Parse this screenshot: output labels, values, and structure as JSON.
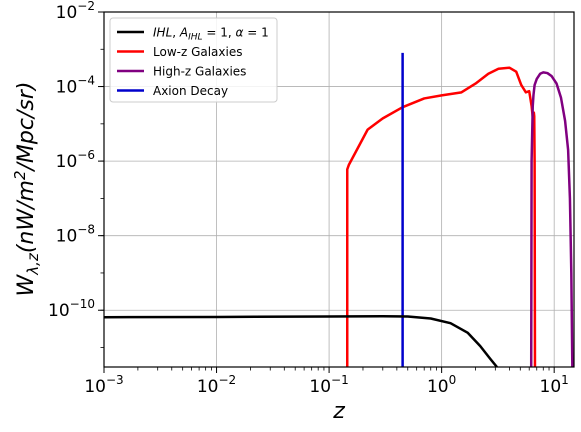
{
  "chart_data": {
    "type": "line",
    "xscale": "log",
    "yscale": "log",
    "xlim": [
      0.001,
      15
    ],
    "ylim": [
      3e-12,
      0.01
    ],
    "grid": true,
    "legend_position": "top-left",
    "xlabel": "z",
    "ylabel": "W_{λ,z}(nW/m^2/Mpc/sr)",
    "x_ticks": [
      {
        "value": 0.001,
        "base": "10",
        "exp": "−3"
      },
      {
        "value": 0.01,
        "base": "10",
        "exp": "−2"
      },
      {
        "value": 0.1,
        "base": "10",
        "exp": "−1"
      },
      {
        "value": 1,
        "base": "10",
        "exp": "0"
      },
      {
        "value": 10,
        "base": "10",
        "exp": "1"
      }
    ],
    "y_ticks": [
      {
        "value": 1e-10,
        "base": "10",
        "exp": "−10"
      },
      {
        "value": 1e-08,
        "base": "10",
        "exp": "−8"
      },
      {
        "value": 1e-06,
        "base": "10",
        "exp": "−6"
      },
      {
        "value": 0.0001,
        "base": "10",
        "exp": "−4"
      },
      {
        "value": 0.01,
        "base": "10",
        "exp": "−2"
      }
    ],
    "series": [
      {
        "name": "IHL, A_IHL = 1, α = 1",
        "color": "#000000",
        "x": [
          0.001,
          0.01,
          0.1,
          0.3,
          0.5,
          0.8,
          1.2,
          1.7,
          2.2,
          2.7,
          3.1
        ],
        "y": [
          6.5e-11,
          6.6e-11,
          6.8e-11,
          6.9e-11,
          6.8e-11,
          6e-11,
          4.5e-11,
          2.5e-11,
          1.1e-11,
          5e-12,
          3e-12
        ]
      },
      {
        "name": "Low-z Galaxies",
        "color": "#ff0000",
        "x": [
          0.145,
          0.145,
          0.15,
          0.22,
          0.3,
          0.45,
          0.7,
          1.0,
          1.5,
          2.0,
          2.6,
          3.2,
          4.0,
          4.6,
          5.1,
          5.6,
          6.0,
          6.3,
          6.45,
          6.55,
          6.6,
          6.65,
          6.7,
          6.75
        ],
        "y": [
          3e-12,
          6e-07,
          8e-07,
          7e-06,
          1.4e-05,
          2.8e-05,
          4.8e-05,
          5.8e-05,
          7e-05,
          0.00012,
          0.00022,
          0.0003,
          0.00032,
          0.00025,
          0.00011,
          7e-05,
          7.5e-05,
          3e-05,
          1.5e-05,
          1.2e-05,
          2e-05,
          1.6e-05,
          1e-06,
          3e-12
        ]
      },
      {
        "name": "High-z Galaxies",
        "color": "#800080",
        "x": [
          6.25,
          6.3,
          6.45,
          6.55,
          6.7,
          7.0,
          7.5,
          8.0,
          8.7,
          9.5,
          10.5,
          11.5,
          12.5,
          13.3,
          13.8,
          14.2,
          14.5
        ],
        "y": [
          3e-12,
          1e-06,
          3e-05,
          6e-05,
          0.00011,
          0.00016,
          0.00022,
          0.00024,
          0.00023,
          0.00019,
          0.00012,
          5e-05,
          1.2e-05,
          2e-06,
          1e-07,
          1e-09,
          3e-12
        ]
      },
      {
        "name": "Axion Decay",
        "color": "#0000cc",
        "x": [
          0.45,
          0.45
        ],
        "y": [
          3e-12,
          0.0008
        ]
      }
    ]
  }
}
